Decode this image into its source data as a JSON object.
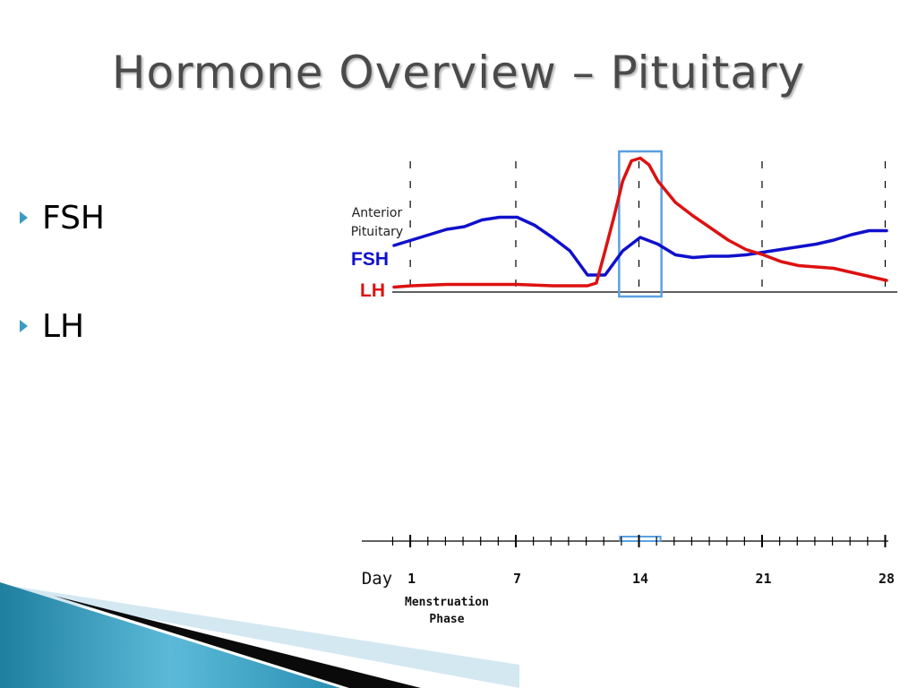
{
  "slide": {
    "title": "Hormone Overview – Pituitary",
    "bullets": [
      "FSH",
      "LH"
    ]
  },
  "colors": {
    "fsh": "#1010cc",
    "lh": "#dd1111",
    "highlight": "#5aa0e0",
    "bullet": "#3b9bc2",
    "title": "#4a4a4a"
  },
  "chart_data": {
    "type": "line",
    "top_label_line1": "Anterior",
    "top_label_line2": "Pituitary",
    "axis_label": "Day",
    "x_ticks": [
      1,
      7,
      14,
      21,
      28
    ],
    "x_range": [
      0,
      28
    ],
    "phase_label_line1": "Menstruation",
    "phase_label_line2": "Phase",
    "highlight_days": [
      13,
      15
    ],
    "series": [
      {
        "name": "FSH",
        "x": [
          0,
          1,
          3,
          4,
          5,
          6,
          7,
          8,
          9,
          10,
          11,
          12,
          13,
          14,
          15,
          16,
          17,
          18,
          19,
          20,
          21,
          22,
          23,
          24,
          25,
          26,
          27,
          28
        ],
        "y": [
          0.34,
          0.38,
          0.46,
          0.48,
          0.53,
          0.55,
          0.55,
          0.49,
          0.4,
          0.3,
          0.12,
          0.12,
          0.3,
          0.4,
          0.35,
          0.27,
          0.25,
          0.26,
          0.26,
          0.27,
          0.29,
          0.31,
          0.33,
          0.35,
          0.38,
          0.42,
          0.45,
          0.45
        ]
      },
      {
        "name": "LH",
        "x": [
          0,
          1,
          3,
          5,
          7,
          9,
          10,
          11,
          11.5,
          12,
          12.5,
          13,
          13.5,
          14,
          14.5,
          15,
          16,
          17,
          18,
          19,
          20,
          21,
          22,
          23,
          24,
          25,
          26,
          27,
          28
        ],
        "y": [
          0.03,
          0.04,
          0.05,
          0.05,
          0.05,
          0.04,
          0.04,
          0.04,
          0.06,
          0.3,
          0.55,
          0.82,
          0.97,
          0.99,
          0.94,
          0.82,
          0.66,
          0.56,
          0.47,
          0.38,
          0.31,
          0.27,
          0.22,
          0.19,
          0.18,
          0.17,
          0.14,
          0.11,
          0.08
        ]
      }
    ]
  }
}
